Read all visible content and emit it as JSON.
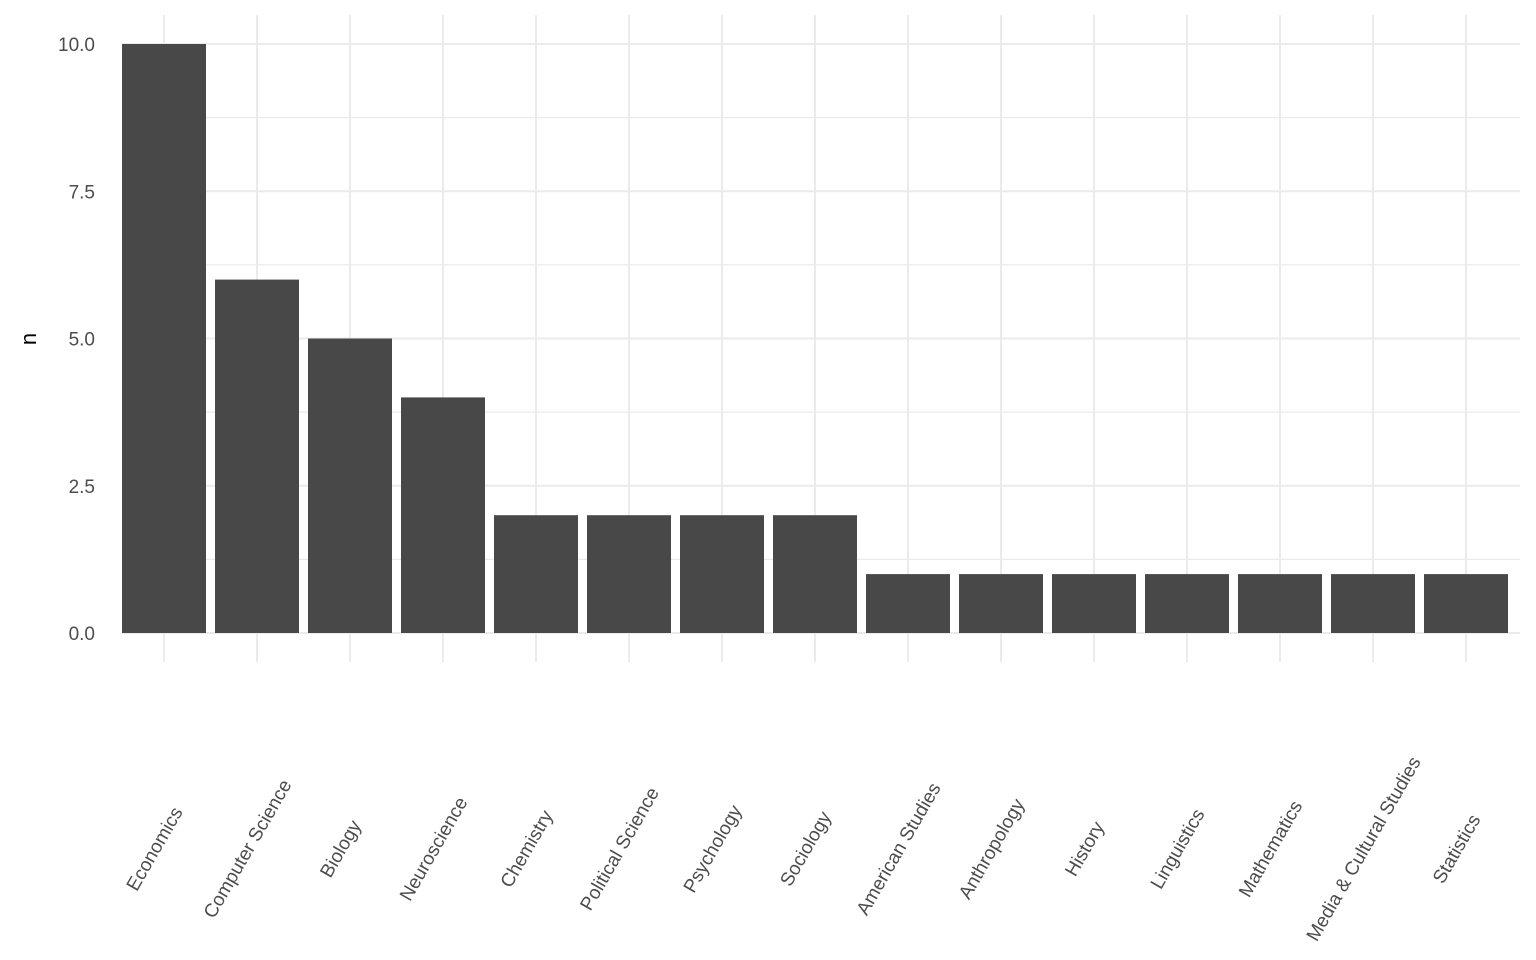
{
  "chart_data": {
    "type": "bar",
    "title": "",
    "xlabel": "",
    "ylabel": "n",
    "categories": [
      "Economics",
      "Computer Science",
      "Biology",
      "Neuroscience",
      "Chemistry",
      "Political Science",
      "Psychology",
      "Sociology",
      "American Studies",
      "Anthropology",
      "History",
      "Linguistics",
      "Mathematics",
      "Media & Cultural Studies",
      "Statistics"
    ],
    "values": [
      10,
      6,
      5,
      4,
      2,
      2,
      2,
      2,
      1,
      1,
      1,
      1,
      1,
      1,
      1
    ],
    "ylim": [
      0,
      10
    ],
    "yticks": [
      "0.0",
      "2.5",
      "5.0",
      "7.5",
      "10.0"
    ],
    "grid": true,
    "bar_color": "#484848",
    "grid_color": "#ebebeb"
  }
}
